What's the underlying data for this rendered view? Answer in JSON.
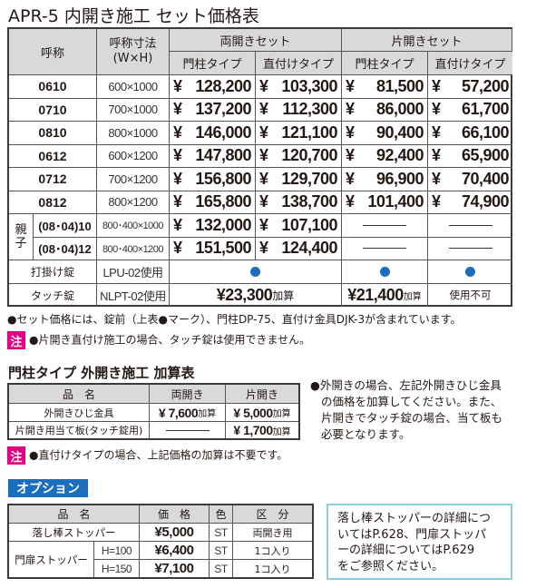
{
  "title": "APR-5 内開き施工 セット価格表",
  "yen": "¥",
  "main_table": {
    "headers": {
      "name": "呼称",
      "size_line1": "呼称寸法",
      "size_line2": "(W×H)",
      "double": "両開きセット",
      "single": "片開きセット",
      "post": "門柱タイプ",
      "direct": "直付けタイプ"
    },
    "rows": [
      {
        "name": "0610",
        "size": "600×1000",
        "prices": [
          "128,200",
          "103,300",
          "81,500",
          "57,200"
        ]
      },
      {
        "name": "0710",
        "size": "700×1000",
        "prices": [
          "137,200",
          "112,300",
          "86,000",
          "61,700"
        ]
      },
      {
        "name": "0810",
        "size": "800×1000",
        "prices": [
          "146,000",
          "121,100",
          "90,400",
          "66,100"
        ]
      },
      {
        "name": "0612",
        "size": "600×1200",
        "prices": [
          "147,800",
          "120,700",
          "92,400",
          "65,900"
        ]
      },
      {
        "name": "0712",
        "size": "700×1200",
        "prices": [
          "156,800",
          "129,700",
          "96,900",
          "70,400"
        ]
      },
      {
        "name": "0812",
        "size": "800×1200",
        "prices": [
          "165,800",
          "138,700",
          "101,400",
          "74,900"
        ]
      }
    ],
    "oyako_label": "親子",
    "oyako_rows": [
      {
        "name": "(08･04)10",
        "size": "800･400×1000",
        "prices": [
          "132,000",
          "107,100"
        ]
      },
      {
        "name": "(08･04)12",
        "size": "800･400×1200",
        "prices": [
          "151,500",
          "124,400"
        ]
      }
    ],
    "latch": {
      "name": "打掛け錠",
      "model": "LPU-02使用"
    },
    "touch": {
      "name": "タッチ錠",
      "model": "NLPT-02使用",
      "double_price": "¥23,300",
      "single_post_price": "¥21,400",
      "add": "加算",
      "single_direct": "使用不可"
    }
  },
  "notes": {
    "set_note": "●セット価格には、錠前（上表●マーク）、門柱DP-75、直付け金具DJK-3が含まれています。",
    "chu": "注",
    "note1": "●片開き直付け施工の場合、タッチ錠は使用できません。"
  },
  "outer": {
    "title": "門柱タイプ 外開き施工 加算表",
    "headers": [
      "品　名",
      "両開き",
      "片開き"
    ],
    "rows": [
      {
        "name": "外開きひじ金具",
        "double": "¥ 7,600",
        "single": "¥ 5,000"
      },
      {
        "name": "片開き用当て板(タッチ錠用)",
        "single": "¥ 1,700"
      }
    ],
    "add": "加算",
    "side_lines": [
      "●外開きの場合、左記外開きひじ金具",
      "の価格を加算してください。また、",
      "片開きでタッチ錠の場合、当て板も",
      "必要となります。"
    ],
    "note": "●直付けタイプの場合、上記価格の加算は不要です。"
  },
  "options": {
    "badge": "オプション",
    "headers": [
      "品　名",
      "価　格",
      "色",
      "区　分"
    ],
    "rows": [
      {
        "name": "落し棒ストッパー",
        "price": "¥5,000",
        "color": "ST",
        "kind": "両開き用"
      },
      {
        "name": "門扉ストッパー",
        "sub": "H=100",
        "price": "¥6,400",
        "color": "ST",
        "kind": "1コ入り"
      },
      {
        "sub": "H=150",
        "price": "¥7,100",
        "color": "ST",
        "kind": "1コ入り"
      }
    ],
    "info_lines": [
      "落し棒ストッパーの詳細につ",
      "いてはP.628、門扉ストッパ",
      "ーの詳細についてはP.629",
      "をご参照ください。"
    ]
  },
  "colors": {
    "accent_blue": "#1a6ec0",
    "note_pink": "#e4007f",
    "header_gray": "#d9d9d9",
    "info_border": "#8ecae6"
  }
}
